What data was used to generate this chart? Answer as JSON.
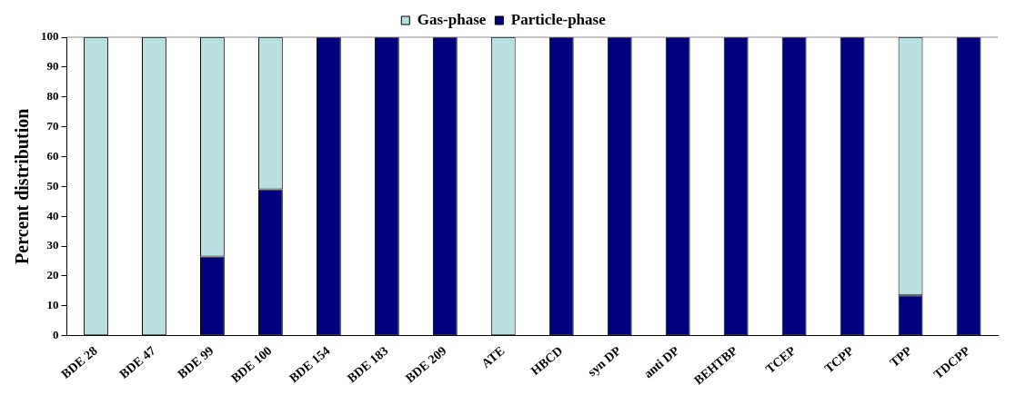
{
  "chart_data": {
    "type": "bar",
    "ylabel": "Percent distribution",
    "categories": [
      "BDE 28",
      "BDE 47",
      "BDE 99",
      "BDE 100",
      "BDE 154",
      "BDE 183",
      "BDE 209",
      "ATE",
      "HBCD",
      "syn DP",
      "anti DP",
      "BEHTBP",
      "TCEP",
      "TCPP",
      "TPP",
      "TDCPP"
    ],
    "stacked": true,
    "legend": "top",
    "series": [
      {
        "name": "Particle-phase",
        "color": "#000080",
        "values": [
          0,
          0,
          26.5,
          49,
          100,
          100,
          100,
          0,
          100,
          100,
          100,
          100,
          100,
          100,
          13.5,
          100
        ]
      },
      {
        "name": "Gas-phase",
        "color": "#b8e0e3",
        "values": [
          100,
          100,
          73.5,
          51,
          0,
          0,
          0,
          100,
          0,
          0,
          0,
          0,
          0,
          0,
          86.5,
          0
        ]
      }
    ],
    "ylim": [
      0,
      100
    ],
    "yticks": [
      0,
      10,
      20,
      30,
      40,
      50,
      60,
      70,
      80,
      90,
      100
    ],
    "grid": false
  }
}
